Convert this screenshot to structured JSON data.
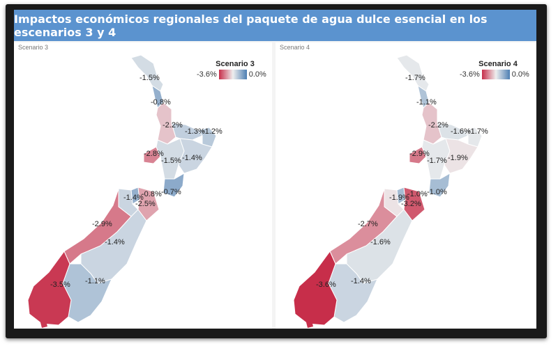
{
  "title": "Impactos económicos regionales del paquete de agua dulce esencial en los escenarios 3 y 4",
  "colors": {
    "title_bar": "#5b93cf",
    "min_color": "#c72e4a",
    "mid_color": "#eeeeee",
    "max_color": "#4d7fb3"
  },
  "panels": [
    {
      "tab_label": "Scenario 3",
      "legend": {
        "title": "Scenario 3",
        "min": "-3.6%",
        "max": "0.0%"
      },
      "regions": [
        {
          "name": "Northland",
          "value": -1.5,
          "label": "-1.5%"
        },
        {
          "name": "Auckland",
          "value": -0.8,
          "label": "-0.8%"
        },
        {
          "name": "Waikato",
          "value": -2.2,
          "label": "-2.2%"
        },
        {
          "name": "Bay of Plenty",
          "value": -1.3,
          "label": "-1.3%"
        },
        {
          "name": "Gisborne",
          "value": -1.2,
          "label": "-1.2%"
        },
        {
          "name": "Taranaki",
          "value": -2.8,
          "label": "-2.8%"
        },
        {
          "name": "Manawatu-Wanganui",
          "value": -1.5,
          "label": "-1.5%"
        },
        {
          "name": "Hawke's Bay",
          "value": -1.4,
          "label": "-1.4%"
        },
        {
          "name": "Wellington",
          "value": -0.7,
          "label": "-0.7%"
        },
        {
          "name": "Nelson",
          "value": -0.8,
          "label": "-0.8%"
        },
        {
          "name": "Tasman",
          "value": -1.4,
          "label": "-1.4%"
        },
        {
          "name": "Marlborough",
          "value": -2.5,
          "label": "-2.5%"
        },
        {
          "name": "West Coast",
          "value": -2.9,
          "label": "-2.9%"
        },
        {
          "name": "Canterbury",
          "value": -1.4,
          "label": "-1.4%"
        },
        {
          "name": "Otago",
          "value": -1.1,
          "label": "-1.1%"
        },
        {
          "name": "Southland",
          "value": -3.5,
          "label": "-3.5%"
        }
      ]
    },
    {
      "tab_label": "Scenario 4",
      "legend": {
        "title": "Scenario 4",
        "min": "-3.6%",
        "max": "0.0%"
      },
      "regions": [
        {
          "name": "Northland",
          "value": -1.7,
          "label": "-1.7%"
        },
        {
          "name": "Auckland",
          "value": -1.1,
          "label": "-1.1%"
        },
        {
          "name": "Waikato",
          "value": -2.2,
          "label": "-2.2%"
        },
        {
          "name": "Bay of Plenty",
          "value": -1.6,
          "label": "-1.6%"
        },
        {
          "name": "Gisborne",
          "value": -1.7,
          "label": "-1.7%"
        },
        {
          "name": "Taranaki",
          "value": -2.9,
          "label": "-2.9%"
        },
        {
          "name": "Manawatu-Wanganui",
          "value": -1.7,
          "label": "-1.7%"
        },
        {
          "name": "Hawke's Bay",
          "value": -1.9,
          "label": "-1.9%"
        },
        {
          "name": "Wellington",
          "value": -1.0,
          "label": "-1.0%"
        },
        {
          "name": "Nelson",
          "value": -1.0,
          "label": "-1.0%"
        },
        {
          "name": "Tasman",
          "value": -1.9,
          "label": "-1.9%"
        },
        {
          "name": "Marlborough",
          "value": -3.2,
          "label": "-3.2%"
        },
        {
          "name": "West Coast",
          "value": -2.7,
          "label": "-2.7%"
        },
        {
          "name": "Canterbury",
          "value": -1.6,
          "label": "-1.6%"
        },
        {
          "name": "Otago",
          "value": -1.4,
          "label": "-1.4%"
        },
        {
          "name": "Southland",
          "value": -3.6,
          "label": "-3.6%"
        }
      ]
    }
  ]
}
